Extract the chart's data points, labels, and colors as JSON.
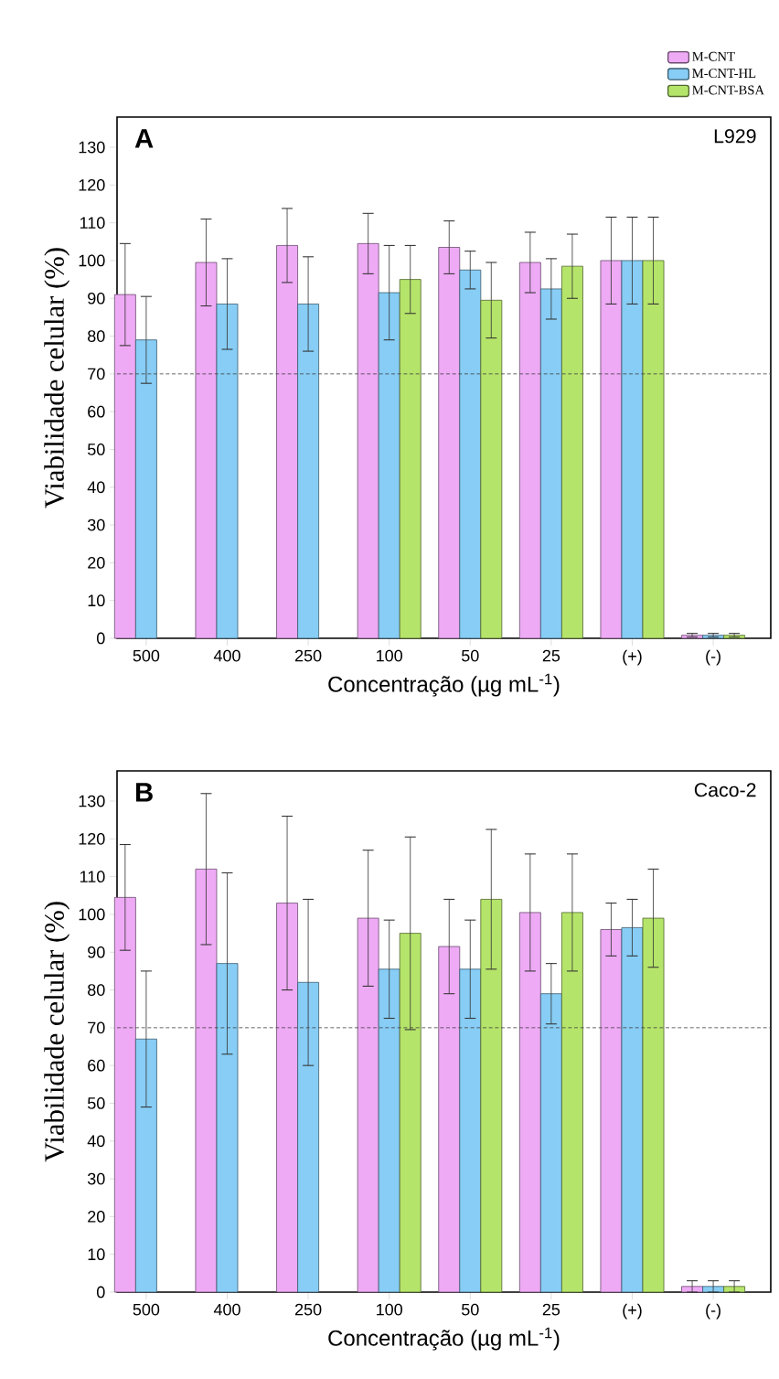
{
  "chart_data": [
    {
      "type": "bar",
      "annotations": [
        "A",
        "L929"
      ],
      "xlabel": "Concentração (µg mL$^{-1}$)",
      "ylabel": "Viabilidade celular (%)",
      "categories": [
        "500",
        "400",
        "250",
        "100",
        "50",
        "25",
        "(+)",
        "(-)"
      ],
      "series": [
        {
          "name": "M-CNT",
          "color": "#eeaaf5",
          "values": [
            91,
            99.5,
            104,
            104.5,
            103.5,
            99.5,
            100,
            0.8
          ],
          "errors": [
            13.5,
            11.5,
            9.8,
            8,
            7,
            8,
            11.5,
            0.5
          ]
        },
        {
          "name": "M-CNT-HL",
          "color": "#87cdf5",
          "values": [
            79,
            88.5,
            88.5,
            91.5,
            97.5,
            92.5,
            100,
            0.8
          ],
          "errors": [
            11.5,
            12,
            12.5,
            12.5,
            5,
            8,
            11.5,
            0.5
          ]
        },
        {
          "name": "M-CNT-BSA",
          "color": "#b5e46a",
          "values": [
            null,
            null,
            null,
            95,
            89.5,
            98.5,
            100,
            0.8
          ],
          "errors": [
            null,
            null,
            null,
            9,
            10,
            8.5,
            11.5,
            0.5
          ]
        }
      ],
      "ylim": [
        0,
        138
      ],
      "yticks": [
        0,
        10,
        20,
        30,
        40,
        50,
        60,
        70,
        80,
        90,
        100,
        110,
        120,
        130
      ],
      "ref_lines": [
        {
          "axis": "y",
          "value": 70,
          "line_style": "dashed"
        }
      ],
      "legend": "top right"
    },
    {
      "type": "bar",
      "annotations": [
        "B",
        "Caco-2"
      ],
      "xlabel": "Concentração (µg mL$^{-1}$)",
      "ylabel": "Viabilidade celular (%)",
      "categories": [
        "500",
        "400",
        "250",
        "100",
        "50",
        "25",
        "(+)",
        "(-)"
      ],
      "series": [
        {
          "color": "#eeaaf5",
          "values": [
            104.5,
            112,
            103,
            99,
            91.5,
            100.5,
            96,
            1.5
          ],
          "errors": [
            14,
            20,
            23,
            18,
            12.5,
            15.5,
            7,
            1.5
          ]
        },
        {
          "color": "#87cdf5",
          "values": [
            67,
            87,
            82,
            85.5,
            85.5,
            79,
            96.5,
            1.5
          ],
          "errors": [
            18,
            24,
            22,
            13,
            13,
            8,
            7.5,
            1.5
          ]
        },
        {
          "color": "#b5e46a",
          "values": [
            null,
            null,
            null,
            95,
            104,
            100.5,
            99,
            1.5
          ],
          "errors": [
            null,
            null,
            null,
            25.5,
            18.5,
            15.5,
            13,
            1.5
          ]
        }
      ],
      "ylim": [
        0,
        138
      ],
      "yticks": [
        0,
        10,
        20,
        30,
        40,
        50,
        60,
        70,
        80,
        90,
        100,
        110,
        120,
        130
      ],
      "ref_lines": [
        {
          "axis": "y",
          "value": 70,
          "line_style": "dashed"
        }
      ]
    }
  ]
}
